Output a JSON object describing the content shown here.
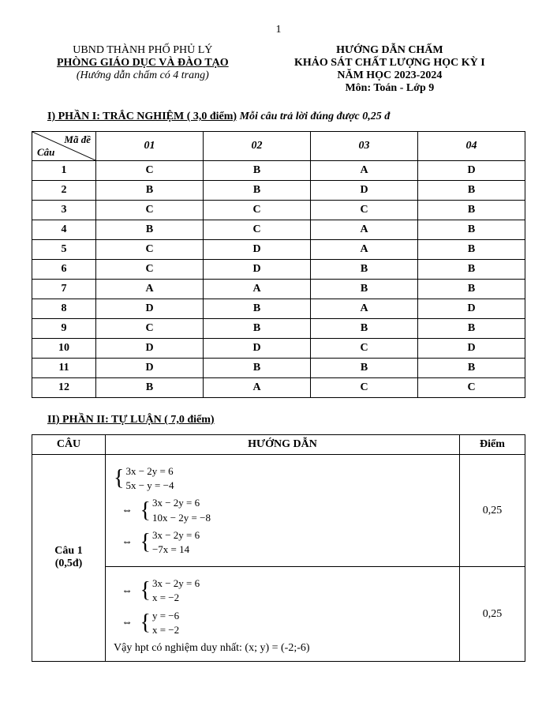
{
  "page_number": "1",
  "header": {
    "left": {
      "line1": "UBND THÀNH PHỐ PHỦ LÝ",
      "line2": "PHÒNG GIÁO DỤC VÀ ĐÀO TẠO",
      "line3": "(Hướng dẫn chấm có 4 trang)"
    },
    "right": {
      "line1": "HƯỚNG DẪN CHẤM",
      "line2": "KHẢO SÁT CHẤT LƯỢNG HỌC KỲ I",
      "line3": "NĂM HỌC 2023-2024",
      "line4": "Môn: Toán - Lớp 9"
    }
  },
  "section1": {
    "title_underline": "I) PHẦN I:  TRẮC NGHIỆM ( 3,0 điểm)",
    "title_rest": " Mỗi câu trả lời đúng được 0,25 đ",
    "diag_top": "Mã đề",
    "diag_bottom": "Câu",
    "cols": [
      "01",
      "02",
      "03",
      "04"
    ],
    "rows": [
      {
        "n": "1",
        "a": [
          "C",
          "B",
          "A",
          "D"
        ]
      },
      {
        "n": "2",
        "a": [
          "B",
          "B",
          "D",
          "B"
        ]
      },
      {
        "n": "3",
        "a": [
          "C",
          "C",
          "C",
          "B"
        ]
      },
      {
        "n": "4",
        "a": [
          "B",
          "C",
          "A",
          "B"
        ]
      },
      {
        "n": "5",
        "a": [
          "C",
          "D",
          "A",
          "B"
        ]
      },
      {
        "n": "6",
        "a": [
          "C",
          "D",
          "B",
          "B"
        ]
      },
      {
        "n": "7",
        "a": [
          "A",
          "A",
          "B",
          "B"
        ]
      },
      {
        "n": "8",
        "a": [
          "D",
          "B",
          "A",
          "D"
        ]
      },
      {
        "n": "9",
        "a": [
          "C",
          "B",
          "B",
          "B"
        ]
      },
      {
        "n": "10",
        "a": [
          "D",
          "D",
          "C",
          "D"
        ]
      },
      {
        "n": "11",
        "a": [
          "D",
          "B",
          "B",
          "B"
        ]
      },
      {
        "n": "12",
        "a": [
          "B",
          "A",
          "C",
          "C"
        ]
      }
    ]
  },
  "section2": {
    "title": "II) PHẦN II:  TỰ LUẬN ( 7,0 điểm)",
    "headers": {
      "cau": "CÂU",
      "hd": "HƯỚNG DẪN",
      "diem": "Điểm"
    },
    "row1": {
      "label_line1": "Câu 1",
      "label_line2": "(0,5đ)",
      "eq1a": "3x − 2y = 6",
      "eq1b": "5x − y = −4",
      "eq2a": "3x − 2y = 6",
      "eq2b": "10x − 2y = −8",
      "eq3a": "3x − 2y = 6",
      "eq3b": "−7x = 14",
      "eq4a": "3x − 2y = 6",
      "eq4b": "x = −2",
      "eq5a": "y = −6",
      "eq5b": "x = −2",
      "conclusion": "Vậy hpt có nghiệm duy nhất: (x; y) = (-2;-6)",
      "score1": "0,25",
      "score2": "0,25"
    }
  }
}
